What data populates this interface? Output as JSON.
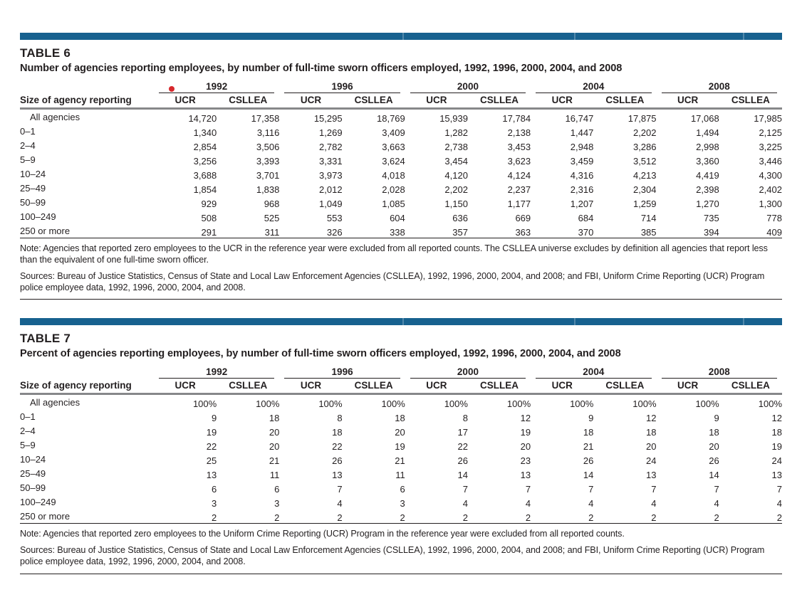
{
  "accent_color": "#17618f",
  "text_color": "#231f20",
  "rule_gray": "#87888a",
  "annotation": {
    "name": "red-dot",
    "color": "#d7282c"
  },
  "years": [
    "1992",
    "1996",
    "2000",
    "2004",
    "2008"
  ],
  "sub_columns": [
    "UCR",
    "CSLLEA"
  ],
  "row_header": "Size of agency reporting",
  "tables": [
    {
      "label": "TABLE 6",
      "title": "Number of agencies reporting employees, by number of full-time sworn officers employed, 1992, 1996, 2000, 2004, and 2008",
      "rows": [
        {
          "label": "All agencies",
          "indent": true,
          "values": [
            "14,720",
            "17,358",
            "15,295",
            "18,769",
            "15,939",
            "17,784",
            "16,747",
            "17,875",
            "17,068",
            "17,985"
          ]
        },
        {
          "label": "0–1",
          "indent": false,
          "values": [
            "1,340",
            "3,116",
            "1,269",
            "3,409",
            "1,282",
            "2,138",
            "1,447",
            "2,202",
            "1,494",
            "2,125"
          ]
        },
        {
          "label": "2–4",
          "indent": false,
          "values": [
            "2,854",
            "3,506",
            "2,782",
            "3,663",
            "2,738",
            "3,453",
            "2,948",
            "3,286",
            "2,998",
            "3,225"
          ]
        },
        {
          "label": "5–9",
          "indent": false,
          "values": [
            "3,256",
            "3,393",
            "3,331",
            "3,624",
            "3,454",
            "3,623",
            "3,459",
            "3,512",
            "3,360",
            "3,446"
          ]
        },
        {
          "label": "10–24",
          "indent": false,
          "values": [
            "3,688",
            "3,701",
            "3,973",
            "4,018",
            "4,120",
            "4,124",
            "4,316",
            "4,213",
            "4,419",
            "4,300"
          ]
        },
        {
          "label": "25–49",
          "indent": false,
          "values": [
            "1,854",
            "1,838",
            "2,012",
            "2,028",
            "2,202",
            "2,237",
            "2,316",
            "2,304",
            "2,398",
            "2,402"
          ]
        },
        {
          "label": "50–99",
          "indent": false,
          "values": [
            "929",
            "968",
            "1,049",
            "1,085",
            "1,150",
            "1,177",
            "1,207",
            "1,259",
            "1,270",
            "1,300"
          ]
        },
        {
          "label": "100–249",
          "indent": false,
          "values": [
            "508",
            "525",
            "553",
            "604",
            "636",
            "669",
            "684",
            "714",
            "735",
            "778"
          ]
        },
        {
          "label": "250 or more",
          "indent": false,
          "values": [
            "291",
            "311",
            "326",
            "338",
            "357",
            "363",
            "370",
            "385",
            "394",
            "409"
          ]
        }
      ],
      "note": "Note: Agencies that reported zero employees to the UCR in the reference year were excluded from all reported counts. The CSLLEA universe excludes by definition all agencies that report less than the equivalent of one full-time sworn officer.",
      "sources": "Sources: Bureau of Justice Statistics, Census of State and Local Law Enforcement Agencies (CSLLEA), 1992, 1996, 2000, 2004, and 2008; and FBI, Uniform Crime Reporting (UCR) Program police employee data, 1992, 1996, 2000, 2004, and 2008."
    },
    {
      "label": "TABLE 7",
      "title": "Percent of agencies reporting employees, by number of full-time sworn officers employed, 1992, 1996, 2000, 2004, and 2008",
      "rows": [
        {
          "label": "All agencies",
          "indent": true,
          "values": [
            "100%",
            "100%",
            "100%",
            "100%",
            "100%",
            "100%",
            "100%",
            "100%",
            "100%",
            "100%"
          ]
        },
        {
          "label": "0–1",
          "indent": false,
          "values": [
            "9",
            "18",
            "8",
            "18",
            "8",
            "12",
            "9",
            "12",
            "9",
            "12"
          ]
        },
        {
          "label": "2–4",
          "indent": false,
          "values": [
            "19",
            "20",
            "18",
            "20",
            "17",
            "19",
            "18",
            "18",
            "18",
            "18"
          ]
        },
        {
          "label": "5–9",
          "indent": false,
          "values": [
            "22",
            "20",
            "22",
            "19",
            "22",
            "20",
            "21",
            "20",
            "20",
            "19"
          ]
        },
        {
          "label": "10–24",
          "indent": false,
          "values": [
            "25",
            "21",
            "26",
            "21",
            "26",
            "23",
            "26",
            "24",
            "26",
            "24"
          ]
        },
        {
          "label": "25–49",
          "indent": false,
          "values": [
            "13",
            "11",
            "13",
            "11",
            "14",
            "13",
            "14",
            "13",
            "14",
            "13"
          ]
        },
        {
          "label": "50–99",
          "indent": false,
          "values": [
            "6",
            "6",
            "7",
            "6",
            "7",
            "7",
            "7",
            "7",
            "7",
            "7"
          ]
        },
        {
          "label": "100–249",
          "indent": false,
          "values": [
            "3",
            "3",
            "4",
            "3",
            "4",
            "4",
            "4",
            "4",
            "4",
            "4"
          ]
        },
        {
          "label": "250 or more",
          "indent": false,
          "values": [
            "2",
            "2",
            "2",
            "2",
            "2",
            "2",
            "2",
            "2",
            "2",
            "2"
          ]
        }
      ],
      "note": "Note: Agencies that reported zero employees to the Uniform Crime Reporting (UCR) Program in the reference year were excluded from all reported counts.",
      "sources": "Sources: Bureau of Justice Statistics, Census of State and Local Law Enforcement Agencies (CSLLEA), 1992, 1996, 2000, 2004, and 2008; and FBI, Uniform Crime Reporting (UCR) Program police employee data, 1992, 1996, 2000, 2004, and 2008."
    }
  ]
}
